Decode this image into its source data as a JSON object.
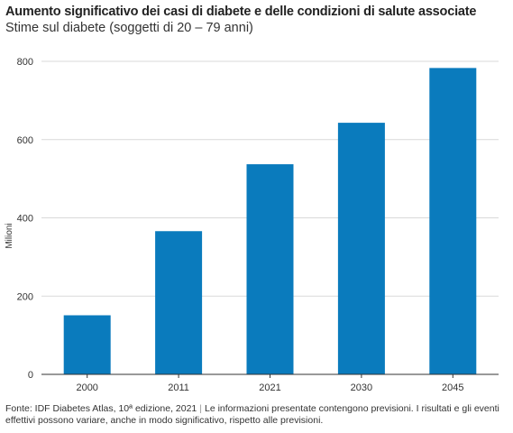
{
  "title": "Aumento significativo dei casi di diabete e delle condizioni di salute associate",
  "subtitle": "Stime sul diabete (soggetti di 20 – 79 anni)",
  "footer": {
    "source": "Fonte: IDF Diabetes Atlas, 10ª edizione, 2021",
    "separator": "|",
    "note": "Le informazioni presentate contengono previsioni. I risultati e gli eventi effettivi possono variare, anche in modo significativo, rispetto alle previsioni."
  },
  "colors": {
    "bar": "#0a7bbd",
    "grid": "#d9d9d9",
    "axis": "#333333"
  },
  "chart_data": {
    "type": "bar",
    "categories": [
      "2000",
      "2011",
      "2021",
      "2030",
      "2045"
    ],
    "values": [
      151,
      366,
      537,
      643,
      783
    ],
    "ylabel": "Milioni",
    "ylim": [
      0,
      800
    ],
    "yticks": [
      0,
      200,
      400,
      600,
      800
    ],
    "grid": true
  }
}
